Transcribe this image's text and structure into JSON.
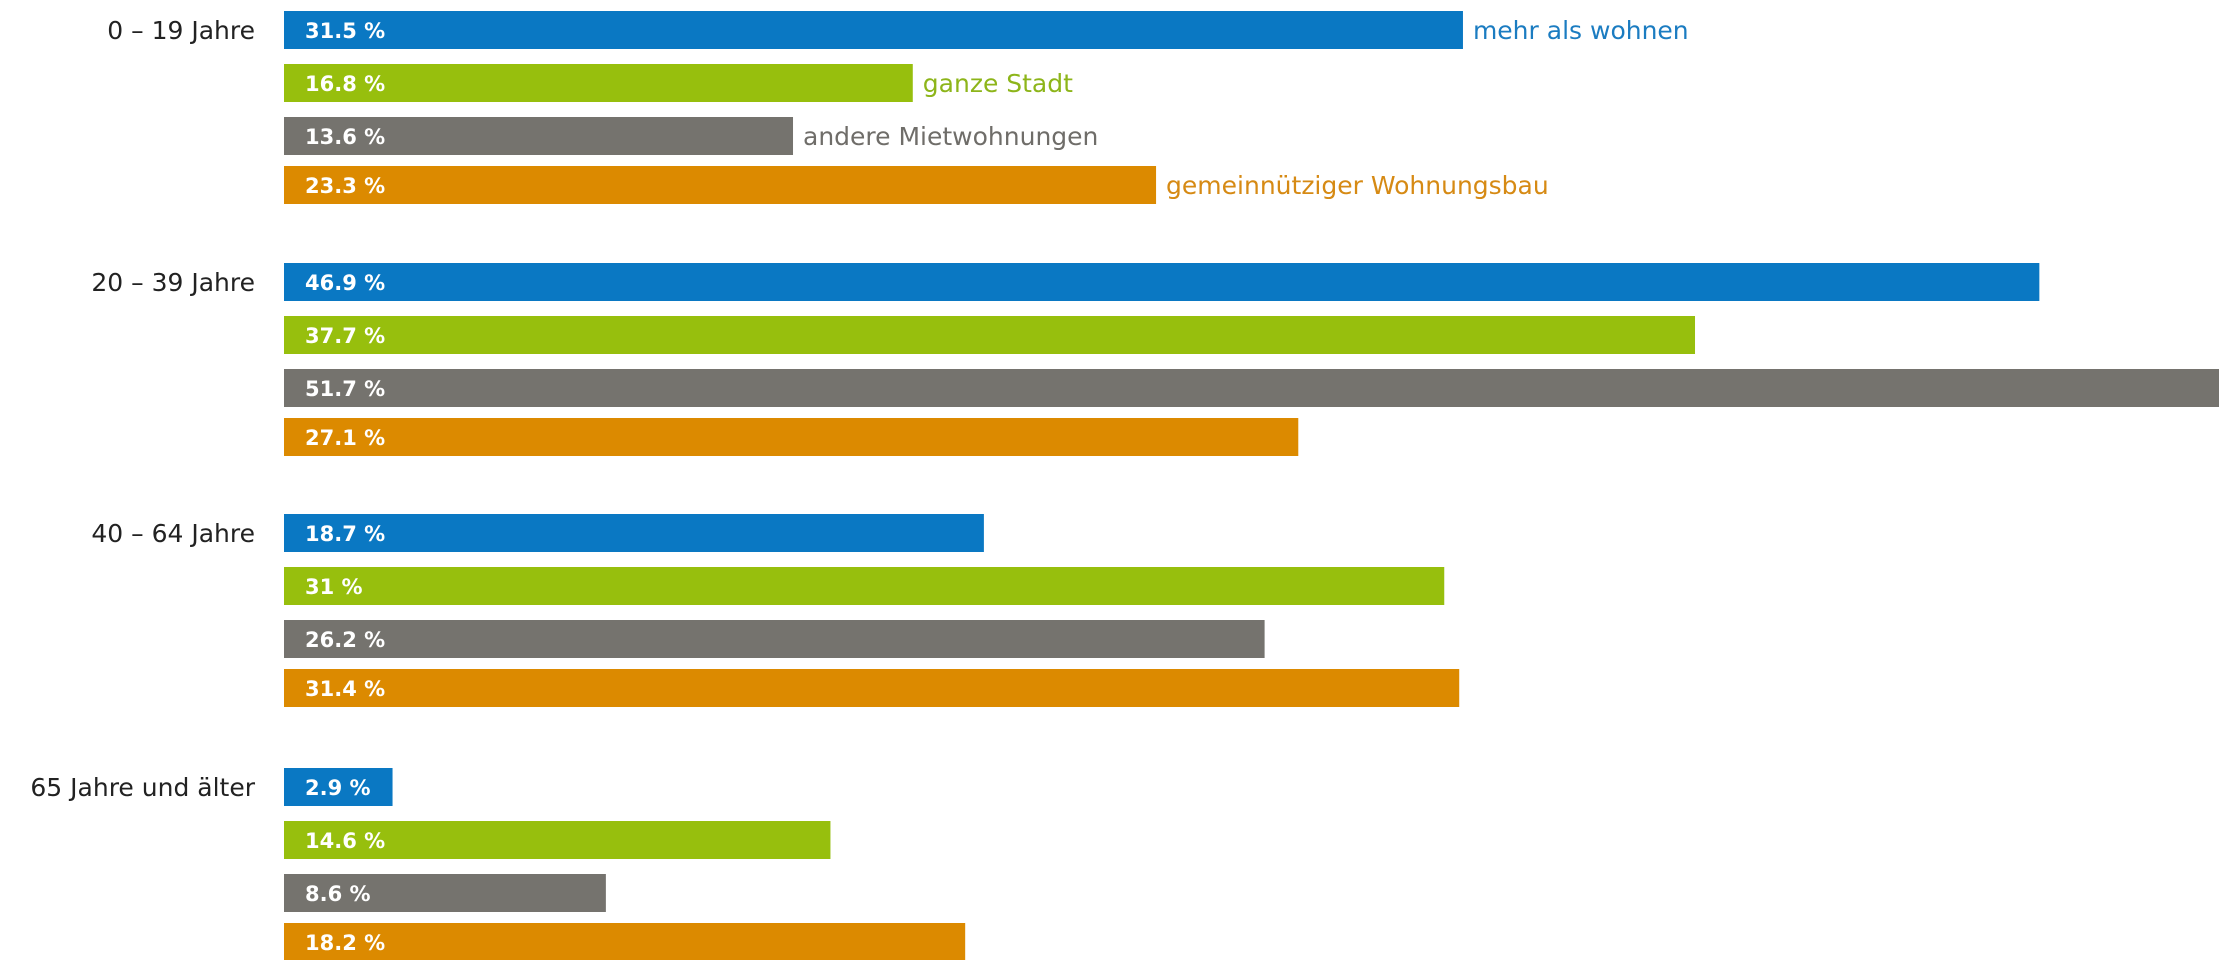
{
  "chart_data": {
    "type": "bar",
    "orientation": "horizontal",
    "categories": [
      "0 – 19 Jahre",
      "20 – 39 Jahre",
      "40 – 64 Jahre",
      "65 Jahre und älter"
    ],
    "series": [
      {
        "name": "mehr als wohnen",
        "color": "#0a78c3",
        "values": [
          31.5,
          46.9,
          18.7,
          2.9
        ],
        "value_labels": [
          "31.5 %",
          "46.9 %",
          "18.7 %",
          "2.9 %"
        ]
      },
      {
        "name": "ganze Stadt",
        "color": "#97bf0d",
        "values": [
          16.8,
          37.7,
          31,
          14.6
        ],
        "value_labels": [
          "16.8 %",
          "37.7 %",
          "31 %",
          "14.6 %"
        ]
      },
      {
        "name": "andere Mietwohnungen",
        "color": "#75736e",
        "values": [
          13.6,
          51.7,
          26.2,
          8.6
        ],
        "value_labels": [
          "13.6 %",
          "51.7 %",
          "26.2 %",
          "8.6 %"
        ]
      },
      {
        "name": "gemeinnütziger Wohnungsbau",
        "color": "#dc8a00",
        "values": [
          23.3,
          27.1,
          31.4,
          18.2
        ],
        "value_labels": [
          "23.3 %",
          "27.1 %",
          "31.4 %",
          "18.2 %"
        ]
      }
    ],
    "series_label_colors": [
      "#1b7cc1",
      "#8db51a",
      "#6f6d69",
      "#d68a14"
    ],
    "legend": "inline-after-first-group",
    "grid": false,
    "xlim": [
      0,
      51.7
    ]
  }
}
